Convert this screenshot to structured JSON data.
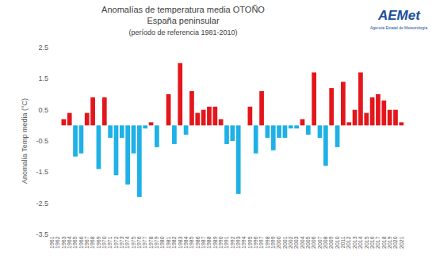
{
  "chart_data": {
    "type": "bar",
    "title": "Anomalías de temperatura media OTOÑO",
    "subtitle": "España peninsular",
    "annotations": [
      {
        "text": "(período de referencia 1981-2010)"
      },
      {
        "text": "AEMet"
      },
      {
        "text": "Agencia Estatal de Meteorología"
      }
    ],
    "y_label": "Anomalía Temp media (°C)",
    "categories": [
      "1961",
      "1962",
      "1963",
      "1964",
      "1965",
      "1966",
      "1967",
      "1968",
      "1969",
      "1970",
      "1971",
      "1972",
      "1973",
      "1974",
      "1975",
      "1976",
      "1977",
      "1978",
      "1979",
      "1980",
      "1981",
      "1982",
      "1983",
      "1984",
      "1985",
      "1986",
      "1987",
      "1988",
      "1989",
      "1990",
      "1991",
      "1992",
      "1993",
      "1994",
      "1995",
      "1996",
      "1997",
      "1998",
      "1999",
      "2000",
      "2001",
      "2002",
      "2003",
      "2004",
      "2005",
      "2006",
      "2007",
      "2008",
      "2009",
      "2010",
      "2011",
      "2012",
      "2013",
      "2014",
      "2015",
      "2016",
      "2017",
      "2018",
      "2019",
      "2020",
      "2021"
    ],
    "values": [
      0,
      0,
      0.2,
      0.4,
      -1.0,
      -0.9,
      0.4,
      0.9,
      -1.4,
      0.9,
      -0.4,
      -1.6,
      -0.4,
      -1.9,
      -0.9,
      -2.3,
      -0.1,
      0.1,
      -0.7,
      0,
      1.0,
      -0.6,
      2.0,
      -0.3,
      1.1,
      0.4,
      0.5,
      0.6,
      0.6,
      0.2,
      -0.6,
      -0.5,
      -2.2,
      0,
      0.6,
      -0.9,
      1.1,
      -0.4,
      -0.8,
      -0.4,
      -0.4,
      -0.1,
      -0.1,
      0.2,
      -0.3,
      1.7,
      -0.4,
      -1.3,
      1.2,
      -0.7,
      1.4,
      0.1,
      0.5,
      1.7,
      0.4,
      0.9,
      1.0,
      0.8,
      0.5,
      0.5,
      0.1
    ],
    "colors": [
      "#e3161c",
      "#e3161c",
      "#e3161c",
      "#e3161c",
      "#1fb1e6",
      "#1fb1e6",
      "#e3161c",
      "#e3161c",
      "#1fb1e6",
      "#e3161c",
      "#1fb1e6",
      "#1fb1e6",
      "#1fb1e6",
      "#1fb1e6",
      "#1fb1e6",
      "#1fb1e6",
      "#1fb1e6",
      "#e3161c",
      "#1fb1e6",
      "#e3161c",
      "#e3161c",
      "#1fb1e6",
      "#e3161c",
      "#1fb1e6",
      "#e3161c",
      "#e3161c",
      "#e3161c",
      "#e3161c",
      "#e3161c",
      "#e3161c",
      "#1fb1e6",
      "#1fb1e6",
      "#1fb1e6",
      "#e3161c",
      "#e3161c",
      "#1fb1e6",
      "#e3161c",
      "#1fb1e6",
      "#1fb1e6",
      "#1fb1e6",
      "#1fb1e6",
      "#1fb1e6",
      "#1fb1e6",
      "#e3161c",
      "#1fb1e6",
      "#e3161c",
      "#1fb1e6",
      "#1fb1e6",
      "#e3161c",
      "#1fb1e6",
      "#e3161c",
      "#e3161c",
      "#e3161c",
      "#e3161c",
      "#e3161c",
      "#e3161c",
      "#e3161c",
      "#e3161c",
      "#e3161c",
      "#e3161c",
      "#e3161c"
    ],
    "ylim": [
      -3.5,
      2.5
    ],
    "yticks": [
      -3.5,
      -2.5,
      -1.5,
      -0.5,
      0.5,
      1.5,
      2.5
    ],
    "grid": false
  }
}
